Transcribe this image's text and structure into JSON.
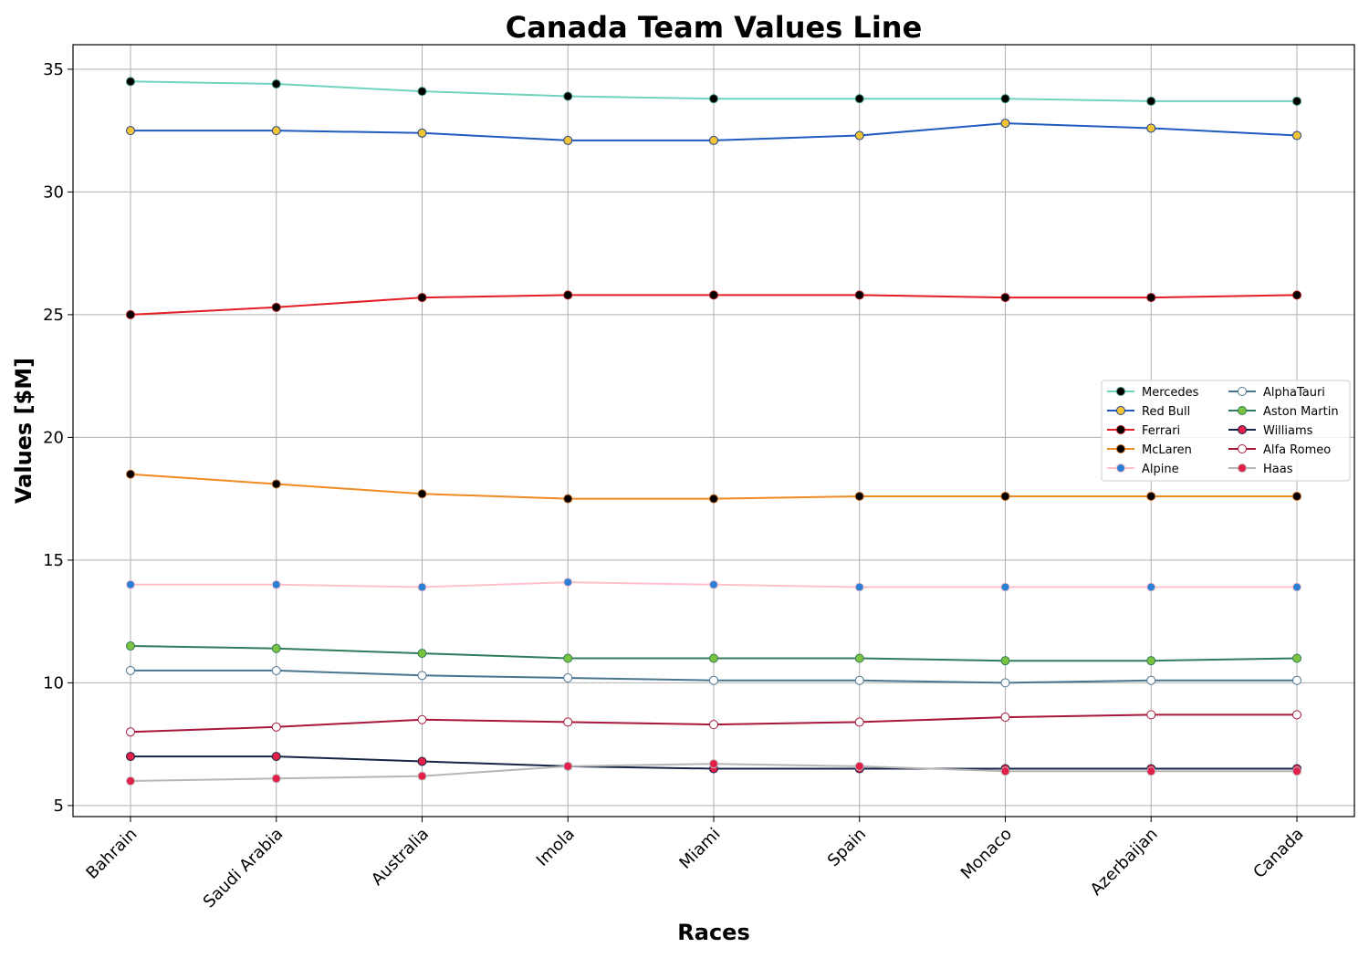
{
  "chart_data": {
    "type": "line",
    "title": "Canada Team Values Line",
    "xlabel": "Races",
    "ylabel": "Values [$M]",
    "categories": [
      "Bahrain",
      "Saudi Arabia",
      "Australia",
      "Imola",
      "Miami",
      "Spain",
      "Monaco",
      "Azerbaijan",
      "Canada"
    ],
    "ylim": [
      4.55,
      36
    ],
    "yticks": [
      5,
      10,
      15,
      20,
      25,
      30,
      35
    ],
    "grid": true,
    "legend_position": "center-right",
    "legend_columns": 2,
    "series": [
      {
        "name": "Mercedes",
        "line_color": "#6fd4bd",
        "marker_face": "#000000",
        "marker_edge": "#3a8a78",
        "values": [
          34.5,
          34.4,
          34.1,
          33.9,
          33.8,
          33.8,
          33.8,
          33.7,
          33.7
        ]
      },
      {
        "name": "Red Bull",
        "line_color": "#1f5bbf",
        "marker_face": "#f2c431",
        "marker_edge": "#1f3f8f",
        "values": [
          32.5,
          32.5,
          32.4,
          32.1,
          32.1,
          32.3,
          32.8,
          32.6,
          32.3
        ]
      },
      {
        "name": "Ferrari",
        "line_color": "#e31e24",
        "marker_face": "#000000",
        "marker_edge": "#b01217",
        "values": [
          25.0,
          25.3,
          25.7,
          25.8,
          25.8,
          25.8,
          25.7,
          25.7,
          25.8
        ]
      },
      {
        "name": "McLaren",
        "line_color": "#f08a23",
        "marker_face": "#000000",
        "marker_edge": "#c0661a",
        "values": [
          18.5,
          18.1,
          17.7,
          17.5,
          17.5,
          17.6,
          17.6,
          17.6,
          17.6
        ]
      },
      {
        "name": "Alpine",
        "line_color": "#ffc0cb",
        "marker_face": "#2b7fd4",
        "marker_edge": "#ffc0cb",
        "values": [
          14.0,
          14.0,
          13.9,
          14.1,
          14.0,
          13.9,
          13.9,
          13.9,
          13.9
        ]
      },
      {
        "name": "AlphaTauri",
        "line_color": "#4a7590",
        "marker_face": "#ffffff",
        "marker_edge": "#4a7590",
        "values": [
          10.5,
          10.5,
          10.3,
          10.2,
          10.1,
          10.1,
          10.0,
          10.1,
          10.1
        ]
      },
      {
        "name": "Aston Martin",
        "line_color": "#2f7d5a",
        "marker_face": "#7cc241",
        "marker_edge": "#2f7d5a",
        "values": [
          11.5,
          11.4,
          11.2,
          11.0,
          11.0,
          11.0,
          10.9,
          10.9,
          11.0
        ]
      },
      {
        "name": "Williams",
        "line_color": "#162447",
        "marker_face": "#e31e49",
        "marker_edge": "#162447",
        "values": [
          7.0,
          7.0,
          6.8,
          6.6,
          6.5,
          6.5,
          6.5,
          6.5,
          6.5
        ]
      },
      {
        "name": "Alfa Romeo",
        "line_color": "#a8173a",
        "marker_face": "#ffffff",
        "marker_edge": "#a8173a",
        "values": [
          8.0,
          8.2,
          8.5,
          8.4,
          8.3,
          8.4,
          8.6,
          8.7,
          8.7
        ]
      },
      {
        "name": "Haas",
        "line_color": "#b6b6b6",
        "marker_face": "#e31e49",
        "marker_edge": "#b6b6b6",
        "values": [
          6.0,
          6.1,
          6.2,
          6.6,
          6.7,
          6.6,
          6.4,
          6.4,
          6.4
        ]
      }
    ]
  }
}
